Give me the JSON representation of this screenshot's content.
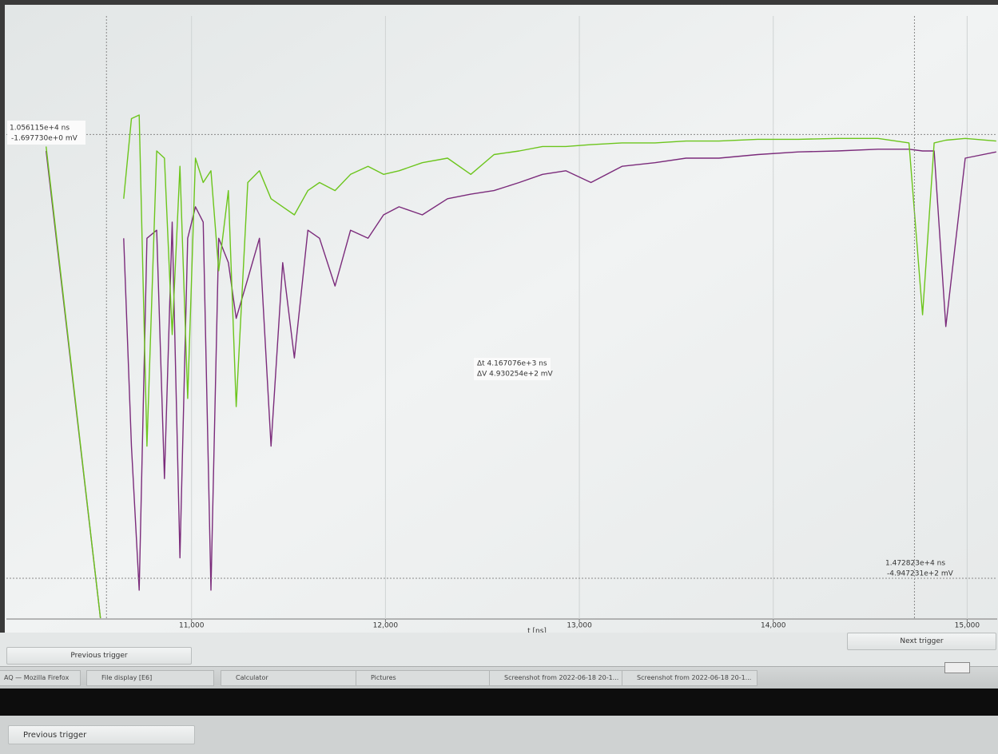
{
  "chart_data": {
    "type": "line",
    "xlabel": "t [ns]",
    "x": [
      10250,
      10530,
      10590,
      10650,
      10690,
      10730,
      10770,
      10820,
      10860,
      10900,
      10940,
      10980,
      11020,
      11060,
      11100,
      11140,
      11190,
      11230,
      11290,
      11350,
      11410,
      11470,
      11530,
      11600,
      11660,
      11740,
      11820,
      11910,
      11990,
      12070,
      12190,
      12320,
      12440,
      12560,
      12690,
      12810,
      12930,
      13060,
      13220,
      13390,
      13550,
      13720,
      13920,
      14130,
      14330,
      14540,
      14700,
      14770,
      14830,
      14890,
      14990,
      15150
    ],
    "series": [
      {
        "color": "#6cc51c",
        "values": [
          -15,
          -539,
          null,
          -73,
          16,
          20,
          -348,
          -20,
          -28,
          -224,
          -37,
          -295,
          -28,
          -55,
          -42,
          -153,
          -64,
          -304,
          -55,
          -42,
          -73,
          -82,
          -91,
          -64,
          -55,
          -64,
          -46,
          -37,
          -46,
          -42,
          -33,
          -28,
          -46,
          -24,
          -20,
          -15,
          -15,
          -13,
          -11,
          -11,
          -9,
          -9,
          -7,
          -7,
          -6,
          -6,
          -11,
          -202,
          -11,
          -8,
          -6,
          -9
        ]
      },
      {
        "color": "#7b2b7b",
        "values": [
          -20,
          -539,
          null,
          -117,
          -348,
          -508,
          -117,
          -108,
          -384,
          -99,
          -472,
          -117,
          -82,
          -99,
          -508,
          -117,
          -144,
          -206,
          -162,
          -117,
          -348,
          -144,
          -250,
          -108,
          -117,
          -170,
          -108,
          -117,
          -91,
          -82,
          -91,
          -73,
          -68,
          -64,
          -55,
          -46,
          -42,
          -55,
          -37,
          -33,
          -28,
          -28,
          -24,
          -21,
          -20,
          -18,
          -18,
          -20,
          -20,
          -215,
          -28,
          -21
        ]
      }
    ],
    "xlim": [
      10045,
      15155
    ],
    "ylim": [
      -540,
      130
    ],
    "xticks": [
      {
        "value": 11000,
        "label": "11,000"
      },
      {
        "value": 12000,
        "label": "12,000"
      },
      {
        "value": 13000,
        "label": "13,000"
      },
      {
        "value": 14000,
        "label": "14,000"
      },
      {
        "value": 15000,
        "label": "15,000"
      }
    ],
    "grid": true,
    "cursors": [
      {
        "t": {
          "value": 10561.15,
          "label": "1.056115e+4 ns"
        },
        "v": {
          "value": -1.69773,
          "label": "-1.697730e+0 mV"
        }
      },
      {
        "t": {
          "value": 14728.23,
          "label": "1.472823e+4 ns"
        },
        "v": {
          "value": -494.7231,
          "label": "-4.947231e+2 mV"
        }
      }
    ],
    "delta_t": "Δt  4.167076e+3 ns",
    "delta_v": "ΔV 4.930254e+2 mV"
  },
  "ui": {
    "prev_button": "Previous trigger",
    "next_button": "Next trigger",
    "taskbar": [
      "AQ — Mozilla Firefox",
      "File display [E6]",
      "Calculator",
      "Pictures",
      "Screenshot from 2022-06-18 20-1...",
      "Screenshot from 2022-06-18 20-1..."
    ],
    "prev_button_2": "Previous trigger"
  }
}
